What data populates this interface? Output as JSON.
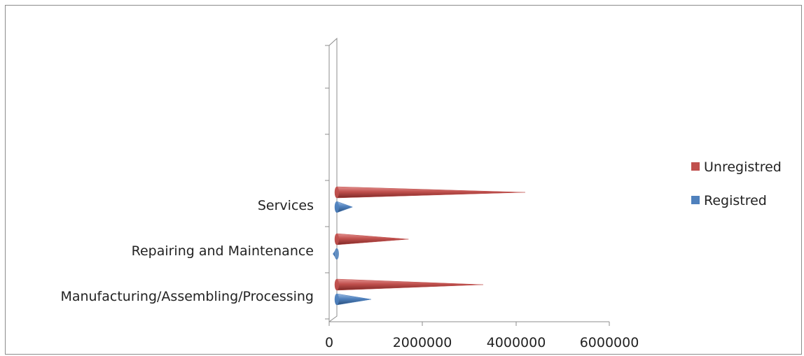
{
  "chart_data": {
    "type": "bar",
    "orientation": "horizontal",
    "style": "3d-cone",
    "title": "",
    "xlabel": "",
    "ylabel": "",
    "categories": [
      "Manufacturing/Assembling/Processing",
      "Repairing and Maintenance",
      "Services"
    ],
    "series": [
      {
        "name": "Registred",
        "color": "#4f81bd",
        "values": [
          900000,
          80000,
          500000
        ]
      },
      {
        "name": "Unregistred",
        "color": "#c0504d",
        "values": [
          3300000,
          1700000,
          4200000
        ]
      }
    ],
    "x_ticks": [
      "0",
      "2000000",
      "4000000",
      "6000000"
    ],
    "xlim": [
      0,
      6000000
    ],
    "grid": false,
    "legend_position": "right"
  },
  "legend": {
    "items": [
      {
        "label": "Unregistred",
        "color": "#c0504d"
      },
      {
        "label": "Registred",
        "color": "#4f81bd"
      }
    ]
  }
}
